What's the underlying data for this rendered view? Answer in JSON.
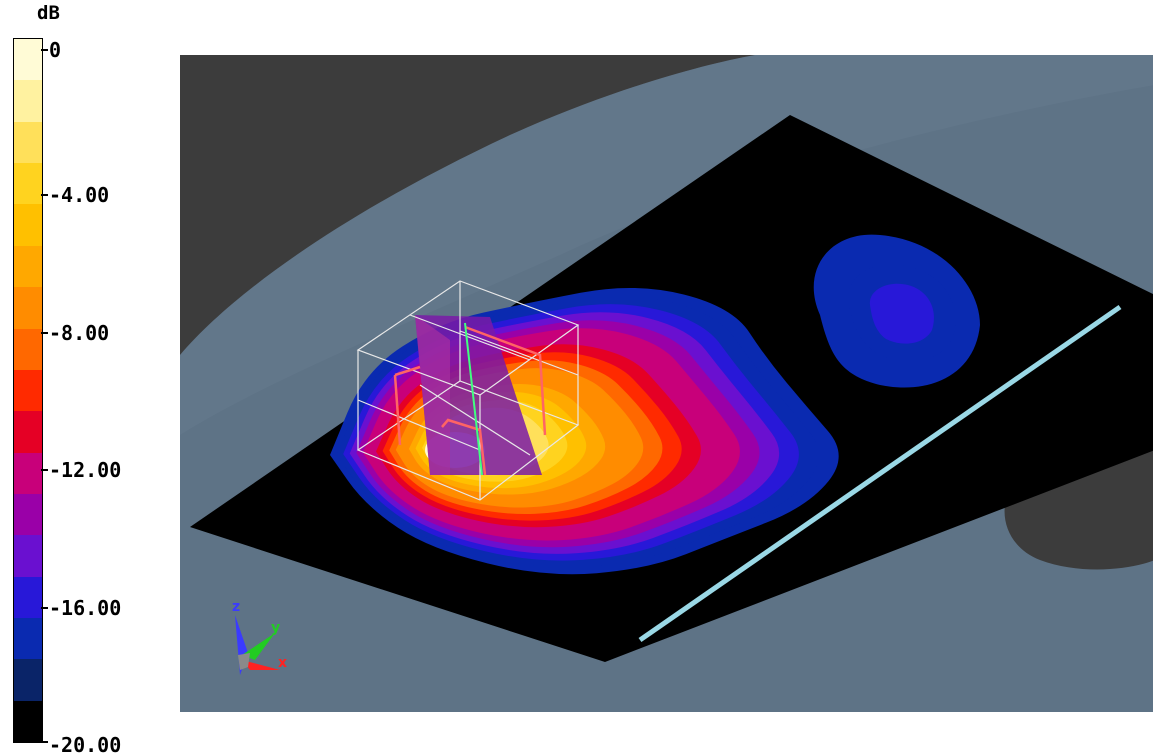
{
  "caption": "",
  "chart_data": {
    "type": "heatmap",
    "title": "",
    "colorbar": {
      "unit": "dB",
      "min": -20.0,
      "max": 0,
      "tick_labels": [
        "0",
        "-4.00",
        "-8.00",
        "-12.00",
        "-16.00",
        "-20.00"
      ],
      "tick_values": [
        0,
        -4,
        -8,
        -12,
        -16,
        -20
      ],
      "levels": [
        "#fffbd6",
        "#fff2a0",
        "#ffe05a",
        "#ffd31f",
        "#ffc000",
        "#ffa800",
        "#ff8c00",
        "#ff6800",
        "#ff2a00",
        "#e50025",
        "#c8007a",
        "#9a00a8",
        "#6a10d0",
        "#2818d8",
        "#0a2ab0",
        "#0a2468",
        "#000000"
      ]
    },
    "field_levels_db": [
      -18,
      -17,
      -16,
      -15,
      -14,
      -13,
      -12,
      -11,
      -10,
      -9,
      -8,
      -7,
      -6,
      -5,
      -4,
      -3,
      -2
    ],
    "axes": [
      "z",
      "y",
      "x"
    ],
    "axis_colors": {
      "z": "#3a3aff",
      "y": "#22cc22",
      "x": "#ff2222"
    }
  }
}
